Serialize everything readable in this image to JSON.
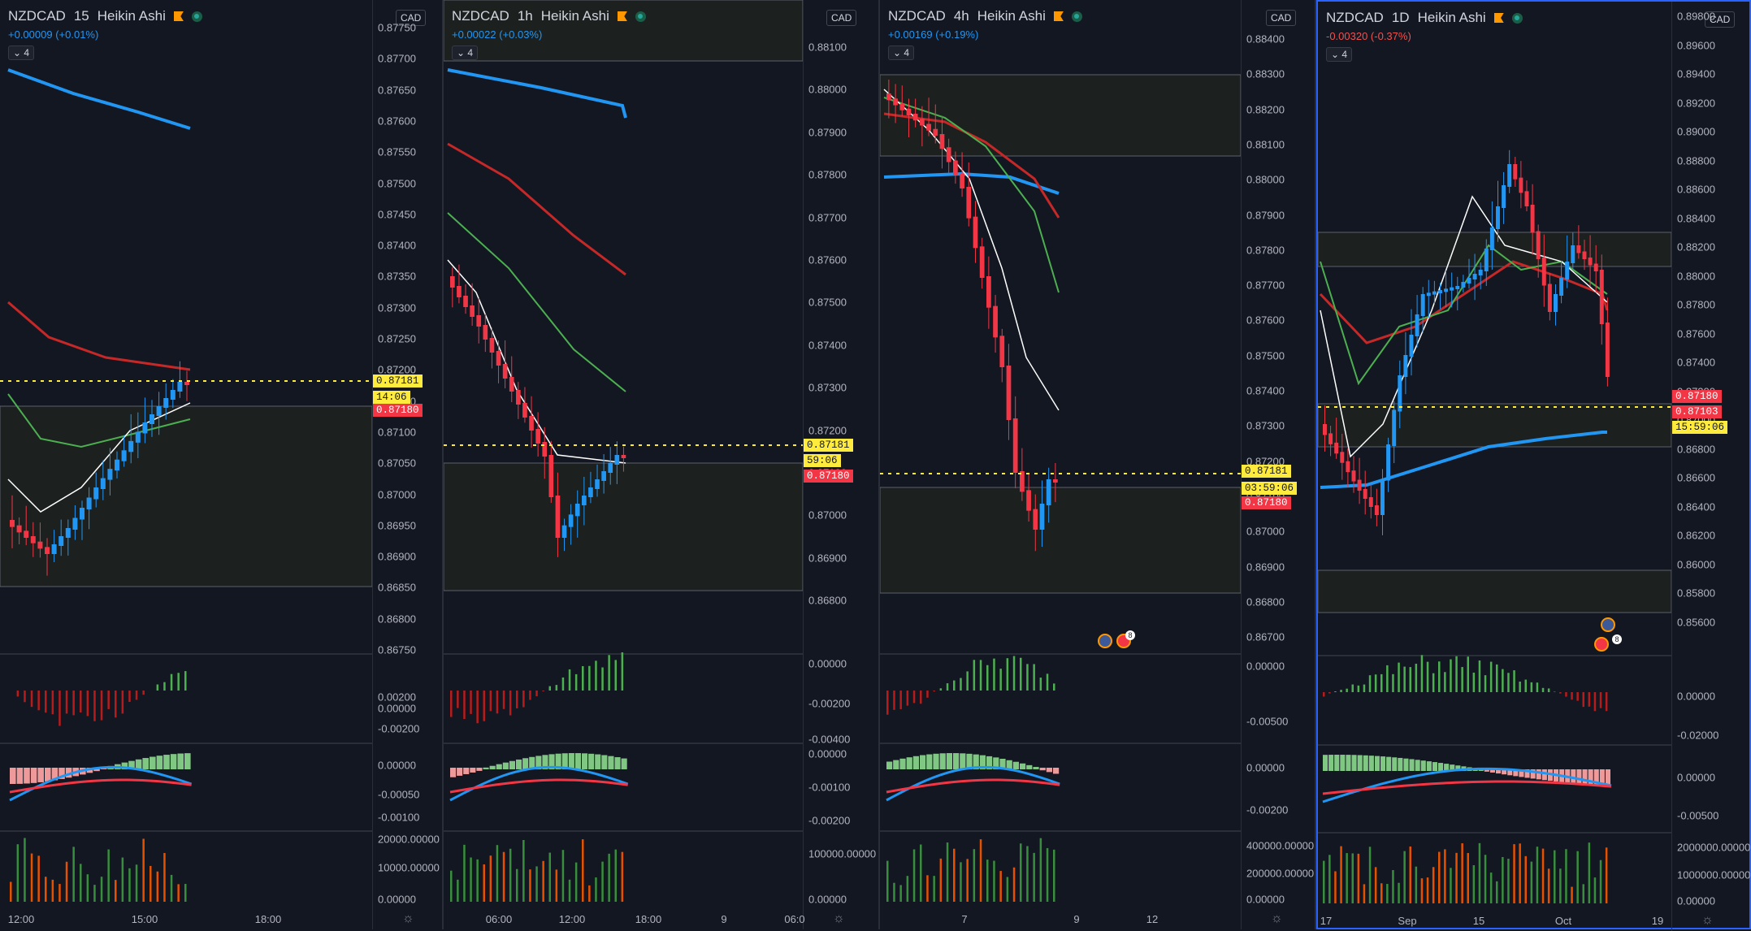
{
  "panels": [
    {
      "symbol": "NZDCAD",
      "interval": "15",
      "style": "Heikin Ashi",
      "change": "+0.00009 (+0.01%)",
      "change_dir": "up",
      "indicators_count": "4",
      "currency": "CAD",
      "price_ticks": [
        "0.87750",
        "0.87700",
        "0.87650",
        "0.87600",
        "0.87550",
        "0.87500",
        "0.87450",
        "0.87400",
        "0.87350",
        "0.87300",
        "0.87250",
        "0.87200",
        "0.87150",
        "0.87100",
        "0.87050",
        "0.87000",
        "0.86950",
        "0.86900",
        "0.86850",
        "0.86800",
        "0.86750"
      ],
      "price_tags": {
        "last": "0.87181",
        "countdown": "14:06",
        "bid": "0.87180"
      },
      "osc1_ticks": [
        "0.00200",
        "0.00000",
        "-0.00200"
      ],
      "osc2_ticks": [
        "0.00000",
        "-0.00050",
        "-0.00100"
      ],
      "vol_ticks": [
        "20000.00000",
        "10000.00000",
        "0.00000"
      ],
      "time_labels": [
        "12:00",
        "15:00",
        "18:00"
      ]
    },
    {
      "symbol": "NZDCAD",
      "interval": "1h",
      "style": "Heikin Ashi",
      "change": "+0.00022 (+0.03%)",
      "change_dir": "up",
      "indicators_count": "4",
      "currency": "CAD",
      "price_ticks": [
        "0.88100",
        "0.88000",
        "0.87900",
        "0.87800",
        "0.87700",
        "0.87600",
        "0.87500",
        "0.87400",
        "0.87300",
        "0.87200",
        "0.87100",
        "0.87000",
        "0.86900",
        "0.86800"
      ],
      "price_tags": {
        "last": "0.87181",
        "countdown": "59:06",
        "bid": "0.87180"
      },
      "osc1_ticks": [
        "0.00000",
        "-0.00200",
        "-0.00400"
      ],
      "osc2_ticks": [
        "0.00000",
        "-0.00100",
        "-0.00200"
      ],
      "vol_ticks": [
        "100000.00000",
        "0.00000"
      ],
      "time_labels": [
        "06:00",
        "12:00",
        "18:00",
        "9",
        "06:0"
      ]
    },
    {
      "symbol": "NZDCAD",
      "interval": "4h",
      "style": "Heikin Ashi",
      "change": "+0.00169 (+0.19%)",
      "change_dir": "up",
      "indicators_count": "4",
      "currency": "CAD",
      "price_ticks": [
        "0.88400",
        "0.88300",
        "0.88200",
        "0.88100",
        "0.88000",
        "0.87900",
        "0.87800",
        "0.87700",
        "0.87600",
        "0.87500",
        "0.87400",
        "0.87300",
        "0.87200",
        "0.87100",
        "0.87000",
        "0.86900",
        "0.86800",
        "0.86700"
      ],
      "price_tags": {
        "last": "0.87181",
        "countdown": "03:59:06",
        "bid": "0.87180"
      },
      "osc1_ticks": [
        "0.00000",
        "-0.00500"
      ],
      "osc2_ticks": [
        "0.00000",
        "-0.00200"
      ],
      "vol_ticks": [
        "400000.00000",
        "200000.00000",
        "0.00000"
      ],
      "time_labels": [
        "7",
        "9",
        "12"
      ],
      "event_badge": "8"
    },
    {
      "symbol": "NZDCAD",
      "interval": "1D",
      "style": "Heikin Ashi",
      "change": "-0.00320 (-0.37%)",
      "change_dir": "down",
      "indicators_count": "4",
      "currency": "CAD",
      "price_ticks": [
        "0.89800",
        "0.89600",
        "0.89400",
        "0.89200",
        "0.89000",
        "0.88800",
        "0.88600",
        "0.88400",
        "0.88200",
        "0.88000",
        "0.87800",
        "0.87600",
        "0.87400",
        "0.87200",
        "0.87000",
        "0.86800",
        "0.86600",
        "0.86400",
        "0.86200",
        "0.86000",
        "0.85800",
        "0.85600"
      ],
      "price_tags": {
        "last": "0.87180",
        "current": "0.87103",
        "countdown": "15:59:06"
      },
      "osc1_ticks": [
        "0.00000",
        "-0.02000"
      ],
      "osc2_ticks": [
        "0.00000",
        "-0.00500"
      ],
      "vol_ticks": [
        "2000000.00000",
        "1000000.00000",
        "0.00000"
      ],
      "time_labels": [
        "17",
        "Sep",
        "15",
        "Oct",
        "19"
      ],
      "event_badge": "8"
    }
  ],
  "colors": {
    "bg": "#131722",
    "bull": "#2196f3",
    "bear": "#f23645",
    "ema_fast": "#ffffff",
    "ema_green": "#4caf50",
    "ema_red": "#c62828",
    "ema_blue": "#2196f3",
    "price_line": "#ffeb3b",
    "zone": "#1c211f"
  },
  "icons": {
    "settings": "gear-icon",
    "alert": "flag-icon",
    "status": "live-dot-icon"
  }
}
